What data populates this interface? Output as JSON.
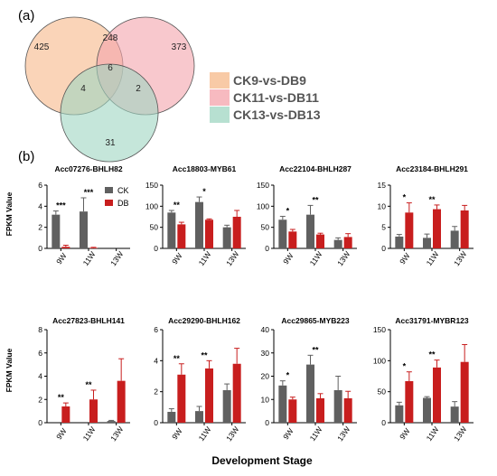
{
  "panel_a_label": "(a)",
  "panel_b_label": "(b)",
  "venn": {
    "sets": [
      {
        "label": "CK9-vs-DB9",
        "color": "#f6b888"
      },
      {
        "label": "CK11-vs-DB11",
        "color": "#f4a3ab"
      },
      {
        "label": "CK13-vs-DB13",
        "color": "#9fd6c2"
      }
    ],
    "regions": {
      "only_a": "425",
      "only_b": "373",
      "only_c": "31",
      "ab": "248",
      "ac": "4",
      "bc": "2",
      "abc": "6"
    }
  },
  "y_axis_label": "FPKM Value",
  "x_axis_label": "Development Stage",
  "bar_legend": [
    {
      "name": "CK",
      "color": "#606060"
    },
    {
      "name": "DB",
      "color": "#c81e1e"
    }
  ],
  "chart_data": [
    {
      "type": "bar",
      "title": "Acc07276-BHLH82",
      "categories": [
        "9W",
        "11W",
        "13W"
      ],
      "ylim": [
        0,
        6
      ],
      "yticks": [
        0,
        2,
        4,
        6
      ],
      "series": [
        {
          "name": "CK",
          "values": [
            3.2,
            3.5,
            0.0
          ],
          "errors": [
            0.35,
            1.3,
            0.0
          ]
        },
        {
          "name": "DB",
          "values": [
            0.15,
            0.05,
            0.0
          ],
          "errors": [
            0.15,
            0.05,
            0.0
          ]
        }
      ],
      "annotations": [
        "***",
        "***",
        ""
      ]
    },
    {
      "type": "bar",
      "title": "Acc18803-MYB61",
      "categories": [
        "9W",
        "11W",
        "13W"
      ],
      "ylim": [
        0,
        150
      ],
      "yticks": [
        0,
        50,
        100,
        150
      ],
      "series": [
        {
          "name": "CK",
          "values": [
            85,
            110,
            50
          ],
          "errors": [
            5,
            12,
            5
          ]
        },
        {
          "name": "DB",
          "values": [
            57,
            68,
            75
          ],
          "errors": [
            5,
            2,
            15
          ]
        }
      ],
      "annotations": [
        "**",
        "*",
        ""
      ]
    },
    {
      "type": "bar",
      "title": "Acc22104-BHLH287",
      "categories": [
        "9W",
        "11W",
        "13W"
      ],
      "ylim": [
        0,
        150
      ],
      "yticks": [
        0,
        50,
        100,
        150
      ],
      "series": [
        {
          "name": "CK",
          "values": [
            68,
            80,
            20
          ],
          "errors": [
            8,
            22,
            5
          ]
        },
        {
          "name": "DB",
          "values": [
            40,
            33,
            27
          ],
          "errors": [
            5,
            3,
            8
          ]
        }
      ],
      "annotations": [
        "*",
        "**",
        ""
      ]
    },
    {
      "type": "bar",
      "title": "Acc23184-BHLH291",
      "categories": [
        "9W",
        "11W",
        "13W"
      ],
      "ylim": [
        0,
        15
      ],
      "yticks": [
        0,
        5,
        10,
        15
      ],
      "series": [
        {
          "name": "CK",
          "values": [
            2.8,
            2.5,
            4.2
          ],
          "errors": [
            0.5,
            0.9,
            1.0
          ]
        },
        {
          "name": "DB",
          "values": [
            8.5,
            9.3,
            9.0
          ],
          "errors": [
            2.3,
            1.0,
            1.2
          ]
        }
      ],
      "annotations": [
        "*",
        "**",
        ""
      ]
    },
    {
      "type": "bar",
      "title": "Acc27823-BHLH141",
      "categories": [
        "9W",
        "11W",
        "13W"
      ],
      "ylim": [
        0,
        8
      ],
      "yticks": [
        0,
        2,
        4,
        6,
        8
      ],
      "series": [
        {
          "name": "CK",
          "values": [
            0.0,
            0.0,
            0.15
          ],
          "errors": [
            0.0,
            0.0,
            0.05
          ]
        },
        {
          "name": "DB",
          "values": [
            1.4,
            2.0,
            3.6
          ],
          "errors": [
            0.3,
            0.8,
            1.9
          ]
        }
      ],
      "annotations": [
        "**",
        "**",
        ""
      ]
    },
    {
      "type": "bar",
      "title": "Acc29290-BHLH162",
      "categories": [
        "9W",
        "11W",
        "13W"
      ],
      "ylim": [
        0,
        6
      ],
      "yticks": [
        0,
        2,
        4,
        6
      ],
      "series": [
        {
          "name": "CK",
          "values": [
            0.7,
            0.75,
            2.1
          ],
          "errors": [
            0.2,
            0.3,
            0.4
          ]
        },
        {
          "name": "DB",
          "values": [
            3.1,
            3.5,
            3.8
          ],
          "errors": [
            0.7,
            0.5,
            1.0
          ]
        }
      ],
      "annotations": [
        "**",
        "**",
        ""
      ]
    },
    {
      "type": "bar",
      "title": "Acc29865-MYB223",
      "categories": [
        "9W",
        "11W",
        "13W"
      ],
      "ylim": [
        0,
        40
      ],
      "yticks": [
        0,
        10,
        20,
        30,
        40
      ],
      "series": [
        {
          "name": "CK",
          "values": [
            16,
            25,
            14
          ],
          "errors": [
            2,
            4,
            6
          ]
        },
        {
          "name": "DB",
          "values": [
            10,
            10.5,
            10.5
          ],
          "errors": [
            1,
            2,
            3
          ]
        }
      ],
      "annotations": [
        "*",
        "**",
        ""
      ]
    },
    {
      "type": "bar",
      "title": "Acc31791-MYBR123",
      "categories": [
        "9W",
        "11W",
        "13W"
      ],
      "ylim": [
        0,
        150
      ],
      "yticks": [
        0,
        50,
        100,
        150
      ],
      "series": [
        {
          "name": "CK",
          "values": [
            28,
            40,
            26
          ],
          "errors": [
            5,
            2,
            8
          ]
        },
        {
          "name": "DB",
          "values": [
            67,
            89,
            98
          ],
          "errors": [
            15,
            12,
            28
          ]
        }
      ],
      "annotations": [
        "*",
        "**",
        ""
      ]
    }
  ]
}
